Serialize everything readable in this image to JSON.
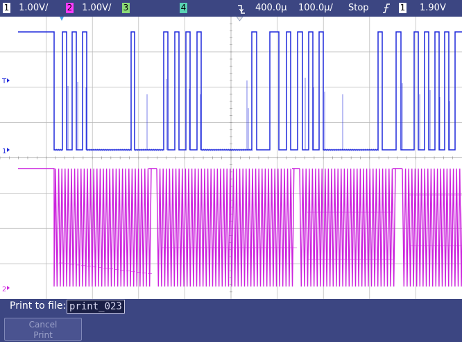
{
  "top_bar": {
    "ch1": {
      "num": "1",
      "scale": "1.00V/",
      "color": "#ffffff"
    },
    "ch2": {
      "num": "2",
      "scale": "1.00V/",
      "color": "#ff3cff"
    },
    "ch3": {
      "num": "3",
      "color": "#8cdc78"
    },
    "ch4": {
      "num": "4",
      "color": "#5ad2b4"
    },
    "trigger_edge_icon": "falling-edge-icon",
    "time_delay": "400.0µ",
    "time_scale": "100.0µ/",
    "run_state": "Stop",
    "trigger_slope_icon": "rising-slope-icon",
    "trigger_source": "1",
    "trigger_level": "1.90V"
  },
  "markers": {
    "trigger_level": "T",
    "ch1_ground": "1",
    "ch2_ground": "2"
  },
  "waveforms": {
    "ch1": {
      "color": "#1e28dc",
      "high": 1,
      "low": 0
    },
    "ch2": {
      "color": "#cc22dd"
    }
  },
  "print_dialog": {
    "label": "Print to file:",
    "filename": "print_023",
    "cancel_line1": "Cancel",
    "cancel_line2": "Print"
  }
}
